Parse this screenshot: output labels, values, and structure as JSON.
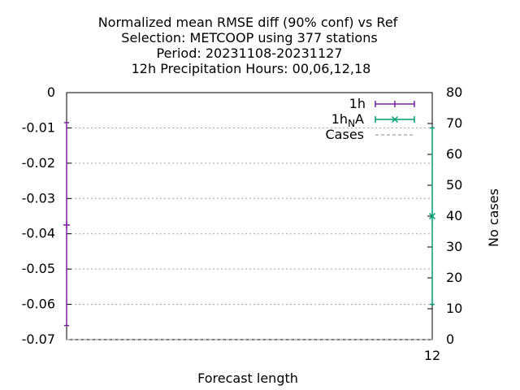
{
  "chart_data": {
    "type": "line",
    "title_lines": [
      "Normalized mean RMSE diff (90% conf) vs Ref",
      "Selection: METCOOP using   377 stations",
      "Period: 20231108-20231127",
      "12h Precipitation    Hours:  00,06,12,18"
    ],
    "xlabel": "Forecast length",
    "ylabel": "",
    "y2label": "No cases",
    "x_ticks": [
      "12"
    ],
    "x_domain": [
      0,
      12
    ],
    "y_ticks": [
      "0",
      "-0.01",
      "-0.02",
      "-0.03",
      "-0.04",
      "-0.05",
      "-0.06",
      "-0.07"
    ],
    "ylim": [
      -0.07,
      0
    ],
    "y2_ticks": [
      "0",
      "10",
      "20",
      "30",
      "40",
      "50",
      "60",
      "70",
      "80"
    ],
    "y2lim": [
      0,
      80
    ],
    "grid": true,
    "legend_position": "top-right",
    "legend": [
      {
        "label": "1h",
        "color": "#7b1fa2",
        "style": "errorbar-plus"
      },
      {
        "label_main": "1h",
        "label_sub": "N",
        "label_tail": "A",
        "color": "#009e73",
        "style": "errorbar-cross"
      },
      {
        "label": "Cases",
        "color": "#a0a0a0",
        "style": "dashed"
      }
    ],
    "series": [
      {
        "name": "1h",
        "color": "#7b1fa2",
        "x": [
          0
        ],
        "y": [
          -0.0375
        ],
        "ylow": [
          -0.066
        ],
        "yhigh": [
          -0.0085
        ]
      },
      {
        "name": "1hNA",
        "color": "#009e73",
        "x": [
          12
        ],
        "y": [
          -0.035
        ],
        "ylow": [
          -0.06
        ],
        "yhigh": [
          -0.01
        ]
      },
      {
        "name": "Cases",
        "color": "#a0a0a0",
        "x": [
          0,
          12
        ],
        "y2": [
          0,
          0
        ]
      }
    ]
  }
}
